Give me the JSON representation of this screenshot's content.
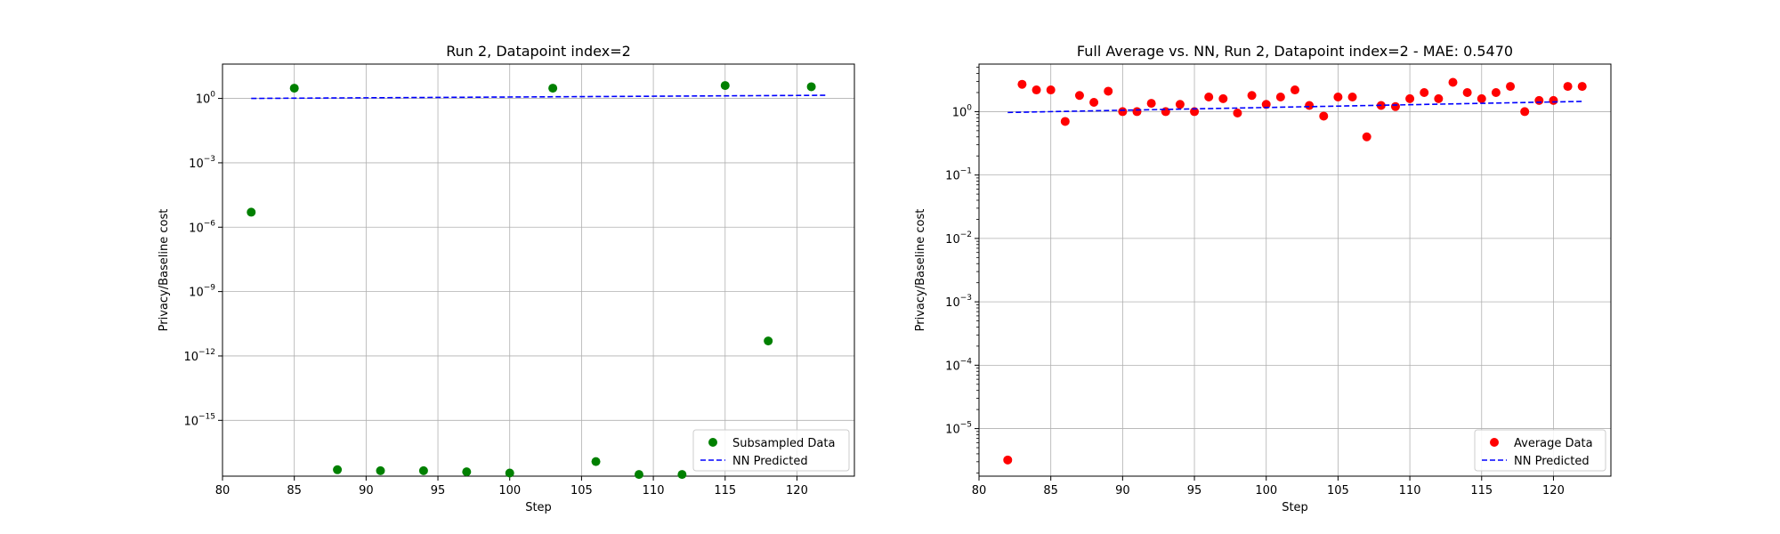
{
  "chart_data": [
    {
      "type": "scatter",
      "title": "Run 2, Datapoint index=2",
      "xlabel": "Step",
      "ylabel": "Privacy/Baseline cost",
      "xlim": [
        80,
        124
      ],
      "ylim_log10": [
        -17.6,
        1.6
      ],
      "yscale": "log",
      "grid": true,
      "legend_position": "lower-right",
      "x_ticks": [
        {
          "label": "80",
          "value": 80
        },
        {
          "label": "85",
          "value": 85
        },
        {
          "label": "90",
          "value": 90
        },
        {
          "label": "95",
          "value": 95
        },
        {
          "label": "100",
          "value": 100
        },
        {
          "label": "105",
          "value": 105
        },
        {
          "label": "110",
          "value": 110
        },
        {
          "label": "115",
          "value": 115
        },
        {
          "label": "120",
          "value": 120
        }
      ],
      "y_ticks": [
        {
          "base": "10",
          "exp": "0",
          "log": 0
        },
        {
          "base": "10",
          "exp": "−3",
          "log": -3
        },
        {
          "base": "10",
          "exp": "−6",
          "log": -6
        },
        {
          "base": "10",
          "exp": "−9",
          "log": -9
        },
        {
          "base": "10",
          "exp": "−12",
          "log": -12
        },
        {
          "base": "10",
          "exp": "−15",
          "log": -15
        }
      ],
      "series": [
        {
          "name": "Subsampled Data",
          "kind": "scatter",
          "color": "#008000",
          "x": [
            82,
            85,
            88,
            91,
            94,
            97,
            100,
            103,
            106,
            109,
            112,
            115,
            118,
            121
          ],
          "y": [
            5e-06,
            3,
            5e-18,
            4.5e-18,
            4.5e-18,
            4e-18,
            3.5e-18,
            3,
            1.2e-17,
            3e-18,
            3e-18,
            4,
            5e-12,
            3.5
          ]
        },
        {
          "name": "NN Predicted",
          "kind": "line",
          "style": "dashed",
          "color": "#0000ff",
          "x": [
            82,
            122
          ],
          "y": [
            1.0,
            1.4
          ]
        }
      ]
    },
    {
      "type": "scatter",
      "title": "Full Average vs. NN, Run 2, Datapoint index=2 - MAE: 0.5470",
      "xlabel": "Step",
      "ylabel": "Privacy/Baseline cost",
      "xlim": [
        80,
        124
      ],
      "ylim_log10": [
        -5.75,
        0.75
      ],
      "yscale": "log",
      "grid": true,
      "legend_position": "lower-right",
      "x_ticks": [
        {
          "label": "80",
          "value": 80
        },
        {
          "label": "85",
          "value": 85
        },
        {
          "label": "90",
          "value": 90
        },
        {
          "label": "95",
          "value": 95
        },
        {
          "label": "100",
          "value": 100
        },
        {
          "label": "105",
          "value": 105
        },
        {
          "label": "110",
          "value": 110
        },
        {
          "label": "115",
          "value": 115
        },
        {
          "label": "120",
          "value": 120
        }
      ],
      "y_ticks": [
        {
          "base": "10",
          "exp": "0",
          "log": 0
        },
        {
          "base": "10",
          "exp": "−1",
          "log": -1
        },
        {
          "base": "10",
          "exp": "−2",
          "log": -2
        },
        {
          "base": "10",
          "exp": "−3",
          "log": -3
        },
        {
          "base": "10",
          "exp": "−4",
          "log": -4
        },
        {
          "base": "10",
          "exp": "−5",
          "log": -5
        }
      ],
      "series": [
        {
          "name": "Average Data",
          "kind": "scatter",
          "color": "#ff0000",
          "x": [
            82,
            83,
            84,
            85,
            86,
            87,
            88,
            89,
            90,
            91,
            92,
            93,
            94,
            95,
            96,
            97,
            98,
            99,
            100,
            101,
            102,
            103,
            104,
            105,
            106,
            107,
            108,
            109,
            110,
            111,
            112,
            113,
            114,
            115,
            116,
            117,
            118,
            119,
            120,
            121,
            122
          ],
          "y": [
            3.2e-06,
            2.7,
            2.2,
            2.2,
            0.7,
            1.8,
            1.4,
            2.1,
            1.0,
            1.0,
            1.35,
            1.0,
            1.3,
            1.0,
            1.7,
            1.6,
            0.95,
            1.8,
            1.3,
            1.7,
            2.2,
            1.25,
            0.85,
            1.7,
            1.7,
            0.4,
            1.25,
            1.2,
            1.6,
            2.0,
            1.6,
            2.9,
            2.0,
            1.6,
            2.0,
            2.5,
            1.0,
            1.5,
            1.5,
            2.5,
            2.5
          ]
        },
        {
          "name": "NN Predicted",
          "kind": "line",
          "style": "dashed",
          "color": "#0000ff",
          "x": [
            82,
            122
          ],
          "y": [
            0.97,
            1.45
          ]
        }
      ]
    }
  ]
}
